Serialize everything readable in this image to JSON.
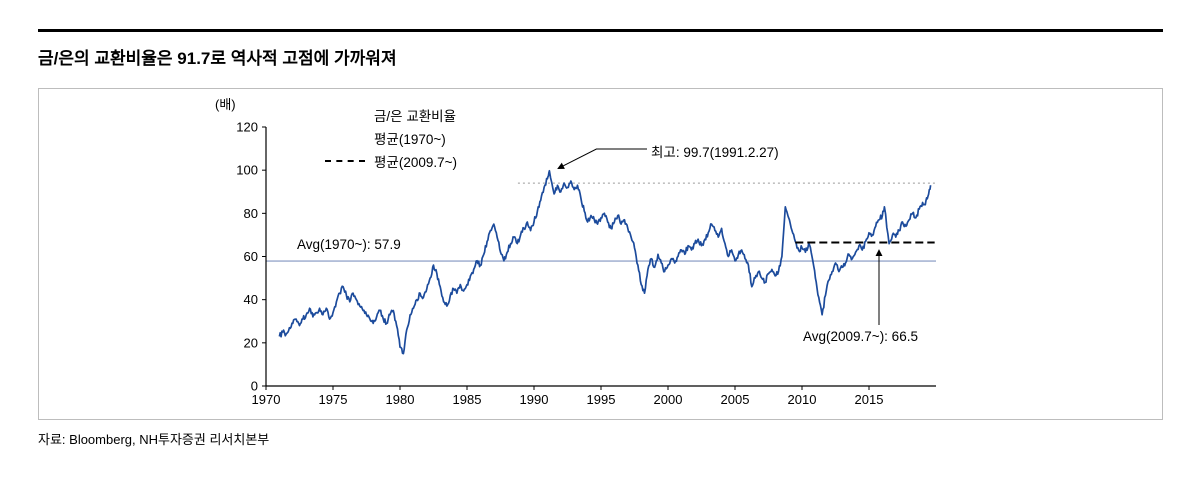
{
  "page": {
    "source": "자료: Bloomberg, NH투자증권 리서치본부"
  },
  "chart_data": {
    "type": "line",
    "title": "금/은의 교환비율은 91.7로 역사적 고점에 가까워져",
    "ylabel": "(배)",
    "xlabel": "",
    "xlim": [
      1970,
      2020
    ],
    "ylim": [
      0,
      120
    ],
    "yticks": [
      0,
      20,
      40,
      60,
      80,
      100,
      120
    ],
    "xticks": [
      1970,
      1975,
      1980,
      1985,
      1990,
      1995,
      2000,
      2005,
      2010,
      2015
    ],
    "grid": false,
    "legend_position": "top-inside",
    "legend": [
      {
        "label": "금/은 교환비율",
        "color": "#1c4b9c",
        "style": "solid",
        "width": 4
      },
      {
        "label": "평균(1970~)",
        "color": "#98a8cc",
        "style": "solid",
        "width": 2
      },
      {
        "label": "평균(2009.7~)",
        "color": "#000000",
        "style": "dashed",
        "width": 2
      }
    ],
    "reference_lines": [
      {
        "name": "recent-high-guide",
        "value": 94,
        "from": 1988.8,
        "to": 2020,
        "color": "#9b9b9b",
        "style": "dotted",
        "width": 1
      },
      {
        "name": "avg-1970",
        "value": 57.9,
        "from": 1970,
        "to": 2020,
        "color": "#98a8cc",
        "style": "solid",
        "width": 1.4
      },
      {
        "name": "avg-2009",
        "value": 66.5,
        "from": 2009.5,
        "to": 2019.9,
        "color": "#000000",
        "style": "dashed",
        "width": 2
      }
    ],
    "annotations": [
      {
        "name": "max-label",
        "text": "최고: 99.7(1991.2.27)",
        "x": 1991.15,
        "y": 99.7
      },
      {
        "name": "avg1970-label",
        "text": "Avg(1970~): 57.9",
        "value": 57.9
      },
      {
        "name": "avg2009-label",
        "text": "Avg(2009.7~): 66.5",
        "value": 66.5
      }
    ],
    "series": [
      {
        "name": "금/은 교환비율",
        "color": "#1c4b9c",
        "points": [
          [
            1971.0,
            23
          ],
          [
            1971.25,
            25
          ],
          [
            1971.5,
            24
          ],
          [
            1971.75,
            27
          ],
          [
            1972.0,
            29
          ],
          [
            1972.25,
            31
          ],
          [
            1972.5,
            28
          ],
          [
            1972.75,
            31
          ],
          [
            1973.0,
            33
          ],
          [
            1973.25,
            36
          ],
          [
            1973.5,
            32
          ],
          [
            1973.75,
            34
          ],
          [
            1974.0,
            36
          ],
          [
            1974.25,
            33
          ],
          [
            1974.5,
            36
          ],
          [
            1974.75,
            31
          ],
          [
            1975.0,
            34
          ],
          [
            1975.25,
            39
          ],
          [
            1975.5,
            43
          ],
          [
            1975.75,
            46
          ],
          [
            1976.0,
            42
          ],
          [
            1976.25,
            39
          ],
          [
            1976.5,
            43
          ],
          [
            1976.75,
            40
          ],
          [
            1977.0,
            37
          ],
          [
            1977.25,
            35
          ],
          [
            1977.5,
            33
          ],
          [
            1977.75,
            31
          ],
          [
            1978.0,
            29
          ],
          [
            1978.25,
            32
          ],
          [
            1978.5,
            35
          ],
          [
            1978.75,
            31
          ],
          [
            1979.0,
            29
          ],
          [
            1979.25,
            33
          ],
          [
            1979.5,
            35
          ],
          [
            1979.75,
            28
          ],
          [
            1980.0,
            18
          ],
          [
            1980.25,
            15
          ],
          [
            1980.5,
            26
          ],
          [
            1980.75,
            33
          ],
          [
            1981.0,
            36
          ],
          [
            1981.25,
            40
          ],
          [
            1981.5,
            43
          ],
          [
            1981.75,
            41
          ],
          [
            1982.0,
            45
          ],
          [
            1982.25,
            50
          ],
          [
            1982.5,
            56
          ],
          [
            1982.75,
            52
          ],
          [
            1983.0,
            46
          ],
          [
            1983.25,
            39
          ],
          [
            1983.5,
            37
          ],
          [
            1983.75,
            42
          ],
          [
            1984.0,
            45
          ],
          [
            1984.25,
            43
          ],
          [
            1984.5,
            47
          ],
          [
            1984.75,
            44
          ],
          [
            1985.0,
            47
          ],
          [
            1985.25,
            51
          ],
          [
            1985.5,
            54
          ],
          [
            1985.75,
            58
          ],
          [
            1986.0,
            56
          ],
          [
            1986.25,
            61
          ],
          [
            1986.5,
            67
          ],
          [
            1986.75,
            72
          ],
          [
            1987.0,
            75
          ],
          [
            1987.25,
            69
          ],
          [
            1987.5,
            62
          ],
          [
            1987.75,
            58
          ],
          [
            1988.0,
            62
          ],
          [
            1988.25,
            66
          ],
          [
            1988.5,
            69
          ],
          [
            1988.75,
            66
          ],
          [
            1989.0,
            70
          ],
          [
            1989.25,
            73
          ],
          [
            1989.5,
            76
          ],
          [
            1989.75,
            72
          ],
          [
            1990.0,
            76
          ],
          [
            1990.25,
            81
          ],
          [
            1990.5,
            86
          ],
          [
            1990.75,
            92
          ],
          [
            1991.0,
            96
          ],
          [
            1991.15,
            99.7
          ],
          [
            1991.5,
            89
          ],
          [
            1991.75,
            93
          ],
          [
            1992.0,
            90
          ],
          [
            1992.25,
            94
          ],
          [
            1992.5,
            92
          ],
          [
            1992.75,
            95
          ],
          [
            1993.0,
            91
          ],
          [
            1993.25,
            93
          ],
          [
            1993.5,
            87
          ],
          [
            1993.75,
            81
          ],
          [
            1994.0,
            76
          ],
          [
            1994.25,
            79
          ],
          [
            1994.5,
            77
          ],
          [
            1994.75,
            75
          ],
          [
            1995.0,
            78
          ],
          [
            1995.25,
            80
          ],
          [
            1995.5,
            76
          ],
          [
            1995.75,
            73
          ],
          [
            1996.0,
            76
          ],
          [
            1996.25,
            79
          ],
          [
            1996.5,
            75
          ],
          [
            1996.75,
            77
          ],
          [
            1997.0,
            73
          ],
          [
            1997.25,
            69
          ],
          [
            1997.5,
            64
          ],
          [
            1997.75,
            56
          ],
          [
            1998.0,
            47
          ],
          [
            1998.25,
            43
          ],
          [
            1998.5,
            54
          ],
          [
            1998.75,
            59
          ],
          [
            1999.0,
            55
          ],
          [
            1999.25,
            61
          ],
          [
            1999.5,
            57
          ],
          [
            1999.75,
            53
          ],
          [
            2000.0,
            56
          ],
          [
            2000.25,
            59
          ],
          [
            2000.5,
            57
          ],
          [
            2000.75,
            60
          ],
          [
            2001.0,
            63
          ],
          [
            2001.25,
            61
          ],
          [
            2001.5,
            65
          ],
          [
            2001.75,
            63
          ],
          [
            2002.0,
            66
          ],
          [
            2002.25,
            68
          ],
          [
            2002.5,
            65
          ],
          [
            2002.75,
            68
          ],
          [
            2003.0,
            71
          ],
          [
            2003.25,
            75
          ],
          [
            2003.5,
            72
          ],
          [
            2003.75,
            69
          ],
          [
            2004.0,
            73
          ],
          [
            2004.25,
            66
          ],
          [
            2004.5,
            60
          ],
          [
            2004.75,
            63
          ],
          [
            2005.0,
            58
          ],
          [
            2005.25,
            61
          ],
          [
            2005.5,
            63
          ],
          [
            2005.75,
            59
          ],
          [
            2006.0,
            56
          ],
          [
            2006.25,
            46
          ],
          [
            2006.5,
            50
          ],
          [
            2006.75,
            53
          ],
          [
            2007.0,
            50
          ],
          [
            2007.25,
            48
          ],
          [
            2007.5,
            52
          ],
          [
            2007.75,
            54
          ],
          [
            2008.0,
            51
          ],
          [
            2008.25,
            53
          ],
          [
            2008.5,
            60
          ],
          [
            2008.75,
            83
          ],
          [
            2009.0,
            78
          ],
          [
            2009.25,
            72
          ],
          [
            2009.5,
            67
          ],
          [
            2009.75,
            63
          ],
          [
            2010.0,
            64
          ],
          [
            2010.25,
            62
          ],
          [
            2010.5,
            66
          ],
          [
            2010.75,
            60
          ],
          [
            2011.0,
            50
          ],
          [
            2011.25,
            41
          ],
          [
            2011.5,
            33
          ],
          [
            2011.75,
            42
          ],
          [
            2012.0,
            49
          ],
          [
            2012.25,
            53
          ],
          [
            2012.5,
            57
          ],
          [
            2012.75,
            53
          ],
          [
            2013.0,
            55
          ],
          [
            2013.25,
            57
          ],
          [
            2013.5,
            61
          ],
          [
            2013.75,
            59
          ],
          [
            2014.0,
            62
          ],
          [
            2014.25,
            65
          ],
          [
            2014.5,
            63
          ],
          [
            2014.75,
            67
          ],
          [
            2015.0,
            71
          ],
          [
            2015.25,
            70
          ],
          [
            2015.5,
            74
          ],
          [
            2015.75,
            77
          ],
          [
            2016.0,
            79
          ],
          [
            2016.15,
            83
          ],
          [
            2016.5,
            66
          ],
          [
            2016.75,
            70
          ],
          [
            2017.0,
            69
          ],
          [
            2017.25,
            72
          ],
          [
            2017.5,
            76
          ],
          [
            2017.75,
            74
          ],
          [
            2018.0,
            77
          ],
          [
            2018.25,
            80
          ],
          [
            2018.5,
            78
          ],
          [
            2018.75,
            82
          ],
          [
            2019.0,
            85
          ],
          [
            2019.2,
            84
          ],
          [
            2019.4,
            88
          ],
          [
            2019.6,
            93
          ]
        ]
      }
    ]
  }
}
